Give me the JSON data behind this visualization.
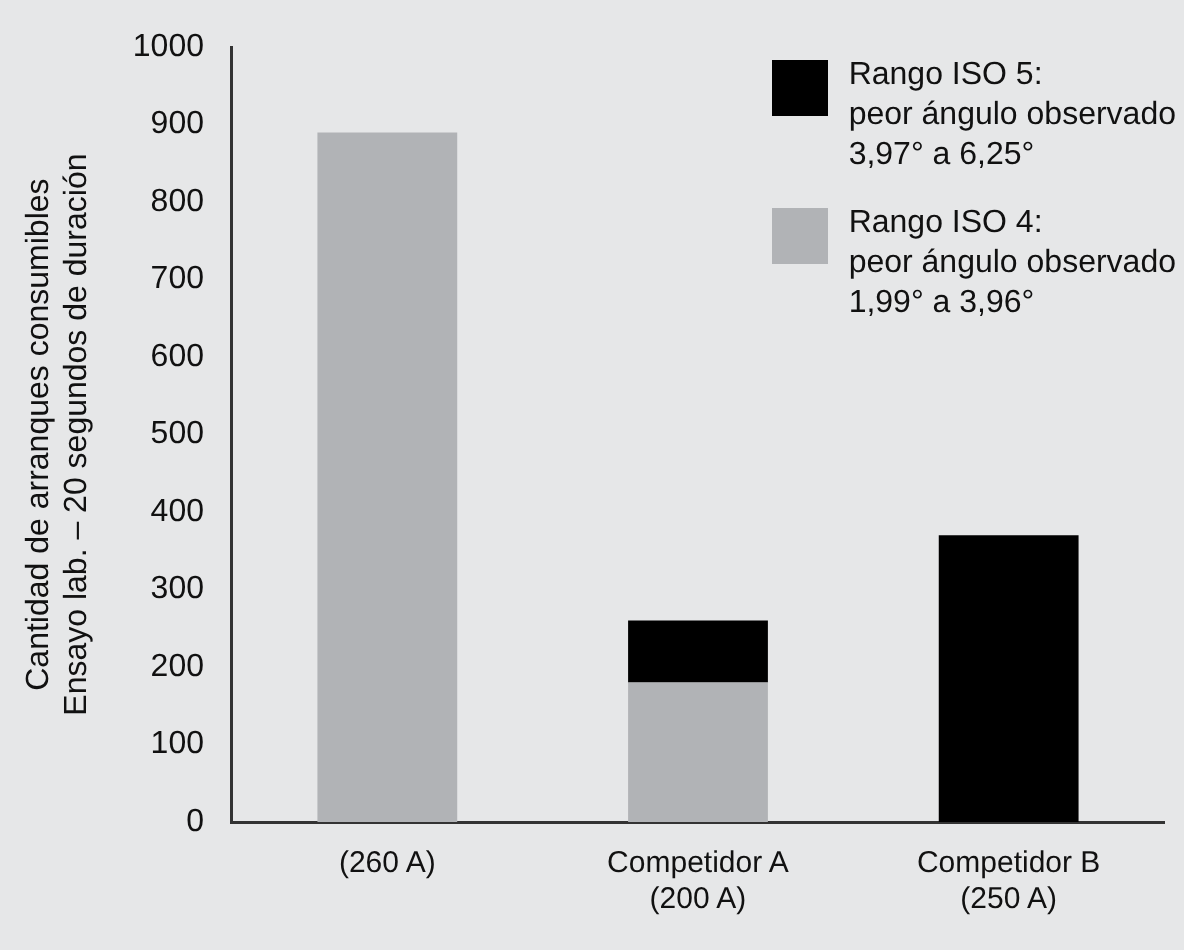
{
  "chart_data": {
    "type": "bar",
    "ylabel": "Cantidad de arranques consumibles\nEnsayo lab. – 20 segundos de duración",
    "categories": [
      "(260 A)",
      "Competidor A\n(200 A)",
      "Competidor B\n(250 A)"
    ],
    "series": [
      {
        "name": "Rango ISO 4:\npeor ángulo observado\n1,99° a 3,96°",
        "color": "#b1b3b6",
        "values": [
          890,
          180,
          null
        ]
      },
      {
        "name": "Rango ISO 5:\npeor ángulo observado\n3,97° a 6,25°",
        "color": "#000000",
        "values": [
          null,
          80,
          370
        ]
      }
    ],
    "stacked": true,
    "ylim": [
      0,
      1000
    ],
    "yticks": [
      0,
      100,
      200,
      300,
      400,
      500,
      600,
      700,
      800,
      900,
      1000
    ],
    "grid": false,
    "legend": "top right"
  }
}
